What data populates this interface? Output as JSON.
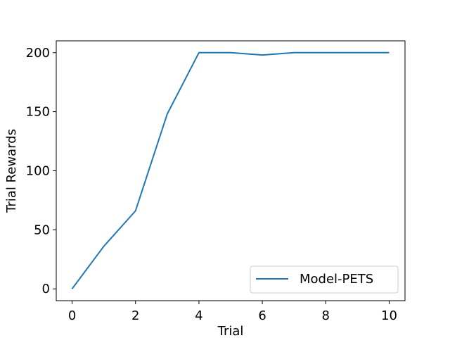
{
  "chart_data": {
    "type": "line",
    "title": "",
    "xlabel": "Trial",
    "ylabel": "Trial Rewards",
    "xlim": [
      -0.5,
      10.5
    ],
    "ylim": [
      -10,
      210
    ],
    "xticks": [
      0,
      2,
      4,
      6,
      8,
      10
    ],
    "yticks": [
      0,
      50,
      100,
      150,
      200
    ],
    "grid": false,
    "legend_position": "bottom-right",
    "series": [
      {
        "name": "Model-PETS",
        "color": "#1f77b4",
        "x": [
          0,
          1,
          2,
          3,
          4,
          5,
          6,
          7,
          8,
          9,
          10
        ],
        "y": [
          0,
          36,
          66,
          148,
          200,
          200,
          198,
          200,
          200,
          200,
          200
        ]
      }
    ]
  }
}
